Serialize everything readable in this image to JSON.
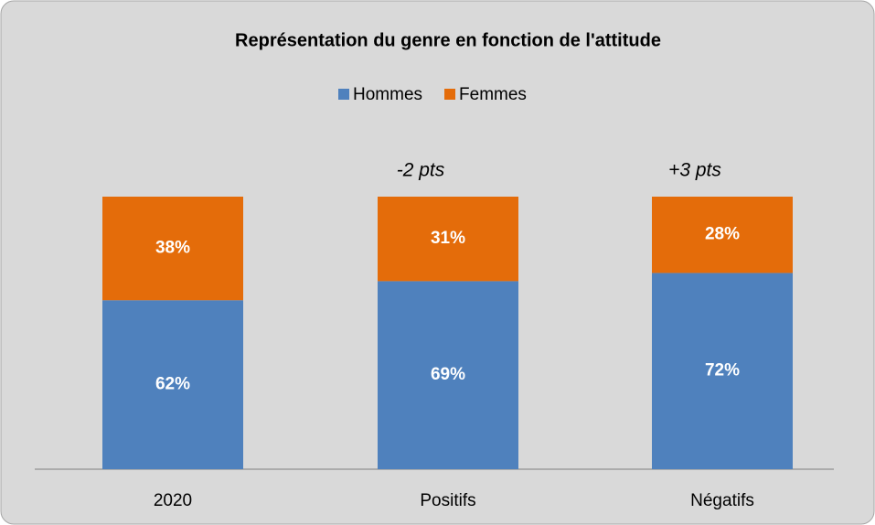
{
  "chart_data": {
    "type": "stacked_bar",
    "title": "Représentation du genre en fonction de l'attitude",
    "categories": [
      "2020",
      "Positifs",
      "Négatifs"
    ],
    "series": [
      {
        "name": "Hommes",
        "color": "#4f81bd",
        "values": [
          62,
          69,
          72
        ],
        "value_labels": [
          "62%",
          "69%",
          "72%"
        ]
      },
      {
        "name": "Femmes",
        "color": "#e46c0a",
        "values": [
          38,
          31,
          28
        ],
        "value_labels": [
          "38%",
          "31%",
          "28%"
        ]
      }
    ],
    "annotations": [
      null,
      "-2 pts",
      "+3 pts"
    ],
    "legend": "top"
  }
}
